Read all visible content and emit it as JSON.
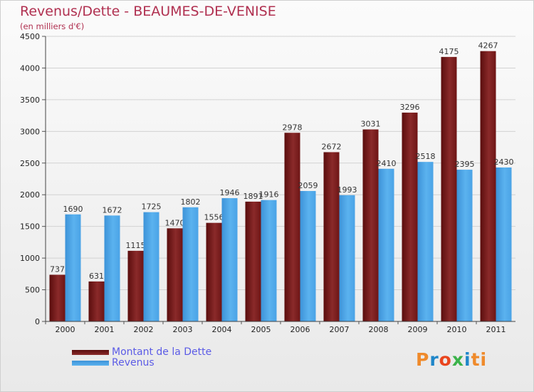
{
  "header": {
    "title": "Revenus/Dette - BEAUMES-DE-VENISE",
    "subtitle": "(en milliers d'€)"
  },
  "legend": [
    {
      "label": "Montant de la Dette",
      "color": "#6e1010"
    },
    {
      "label": "Revenus",
      "color": "#4aa3e6"
    }
  ],
  "logo": {
    "text": "Proxiti",
    "colors": [
      "#ef8a2b",
      "#1f86c9",
      "#e9451e",
      "#3bb24a",
      "#1f86c9",
      "#ef8a2b",
      "#ef8a2b"
    ]
  },
  "chart_data": {
    "type": "bar",
    "categories": [
      "2000",
      "2001",
      "2002",
      "2003",
      "2004",
      "2005",
      "2006",
      "2007",
      "2008",
      "2009",
      "2010",
      "2011"
    ],
    "series": [
      {
        "name": "Montant de la Dette",
        "color": "#7a1a1a",
        "values": [
          737,
          631,
          1115,
          1470,
          1556,
          1891,
          2978,
          2672,
          3031,
          3296,
          4175,
          4267
        ]
      },
      {
        "name": "Revenus",
        "color": "#4aa3e6",
        "values": [
          1690,
          1672,
          1725,
          1802,
          1946,
          1916,
          2059,
          1993,
          2410,
          2518,
          2395,
          2430
        ]
      }
    ],
    "title": "Revenus/Dette - BEAUMES-DE-VENISE",
    "ylabel": "(en milliers d'€)",
    "ylim": [
      0,
      4500
    ],
    "yticks": [
      0,
      500,
      1000,
      1500,
      2000,
      2500,
      3000,
      3500,
      4000,
      4500
    ],
    "grid": true,
    "legend_position": "bottom-left"
  }
}
